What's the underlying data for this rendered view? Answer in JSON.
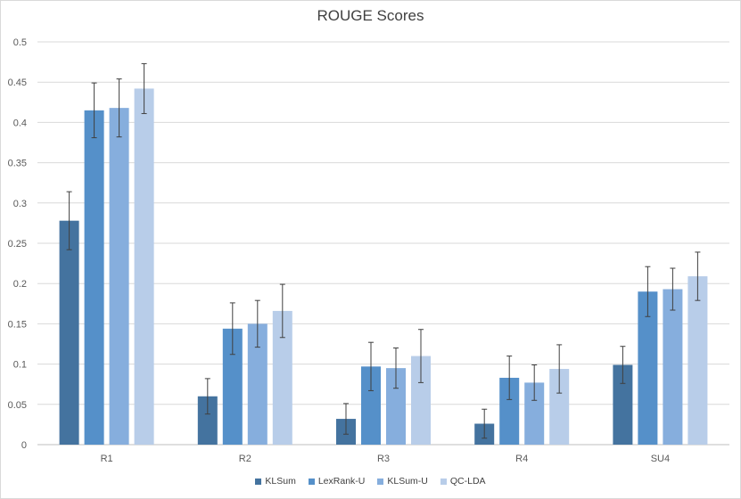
{
  "chart_data": {
    "type": "bar",
    "title": "ROUGE Scores",
    "xlabel": "",
    "ylabel": "",
    "categories": [
      "R1",
      "R2",
      "R3",
      "R4",
      "SU4"
    ],
    "ylim": [
      0,
      0.5
    ],
    "yticks": [
      "0",
      "0.05",
      "0.1",
      "0.15",
      "0.2",
      "0.25",
      "0.3",
      "0.35",
      "0.4",
      "0.45",
      "0.5"
    ],
    "grid": true,
    "legend_position": "bottom",
    "series": [
      {
        "name": "KLSum",
        "color": "#44739f",
        "values": [
          0.278,
          0.06,
          0.032,
          0.026,
          0.099
        ],
        "error": [
          0.036,
          0.022,
          0.019,
          0.018,
          0.023
        ]
      },
      {
        "name": "LexRank-U",
        "color": "#5590c9",
        "values": [
          0.415,
          0.144,
          0.097,
          0.083,
          0.19
        ],
        "error": [
          0.034,
          0.032,
          0.03,
          0.027,
          0.031
        ]
      },
      {
        "name": "KLSum-U",
        "color": "#86aedd",
        "values": [
          0.418,
          0.15,
          0.095,
          0.077,
          0.193
        ],
        "error": [
          0.036,
          0.029,
          0.025,
          0.022,
          0.026
        ]
      },
      {
        "name": "QC-LDA",
        "color": "#b8cde9",
        "values": [
          0.442,
          0.166,
          0.11,
          0.094,
          0.209
        ],
        "error": [
          0.031,
          0.033,
          0.033,
          0.03,
          0.03
        ]
      }
    ]
  }
}
